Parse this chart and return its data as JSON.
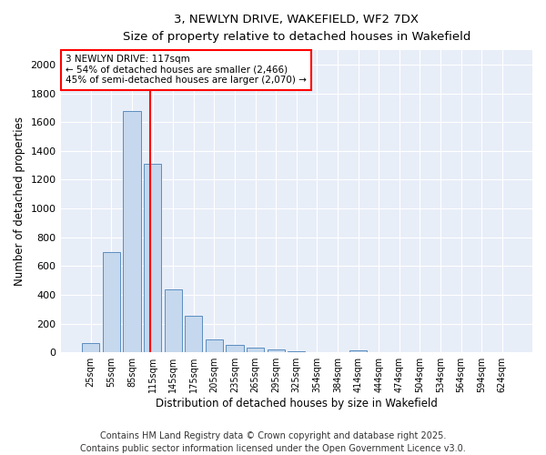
{
  "title": "3, NEWLYN DRIVE, WAKEFIELD, WF2 7DX",
  "subtitle": "Size of property relative to detached houses in Wakefield",
  "xlabel": "Distribution of detached houses by size in Wakefield",
  "ylabel": "Number of detached properties",
  "bar_color": "#c5d8ed",
  "bar_edge_color": "#5b8dc0",
  "background_color": "#e8eef8",
  "grid_color": "white",
  "categories": [
    "25sqm",
    "55sqm",
    "85sqm",
    "115sqm",
    "145sqm",
    "175sqm",
    "205sqm",
    "235sqm",
    "265sqm",
    "295sqm",
    "325sqm",
    "354sqm",
    "384sqm",
    "414sqm",
    "444sqm",
    "474sqm",
    "504sqm",
    "534sqm",
    "564sqm",
    "594sqm",
    "624sqm"
  ],
  "values": [
    65,
    700,
    1680,
    1310,
    440,
    255,
    90,
    55,
    35,
    22,
    10,
    0,
    0,
    12,
    0,
    0,
    0,
    0,
    0,
    0,
    0
  ],
  "ylim": [
    0,
    2100
  ],
  "yticks": [
    0,
    200,
    400,
    600,
    800,
    1000,
    1200,
    1400,
    1600,
    1800,
    2000
  ],
  "property_line_label": "3 NEWLYN DRIVE: 117sqm",
  "annotation_line1": "← 54% of detached houses are smaller (2,466)",
  "annotation_line2": "45% of semi-detached houses are larger (2,070) →",
  "annotation_box_color": "white",
  "annotation_box_edge_color": "red",
  "vline_color": "red",
  "vline_x": 2.87,
  "footer_line1": "Contains HM Land Registry data © Crown copyright and database right 2025.",
  "footer_line2": "Contains public sector information licensed under the Open Government Licence v3.0.",
  "footer_fontsize": 7.0
}
